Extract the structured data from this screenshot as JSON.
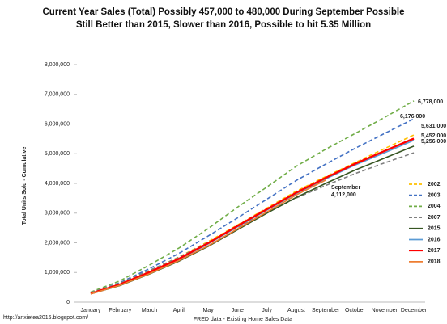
{
  "chart_data": {
    "type": "line",
    "title": "Current Year Sales (Total) Possibly 457,000 to 480,000 During September Possible",
    "subtitle": "Still Better than 2015, Slower than 2016, Possible to hit 5.35 Million",
    "y_label": "Total Units Sold - Cumulative",
    "x_label": "FRED data - Existing Home Sales Data",
    "source": "http://anxietea2016.blogspot.com/",
    "categories": [
      "January",
      "February",
      "March",
      "April",
      "May",
      "June",
      "July",
      "August",
      "September",
      "October",
      "November",
      "December"
    ],
    "ylim": [
      0,
      8000000
    ],
    "yticks": [
      0,
      {
        "value": 1000000,
        "label": "1,000,000"
      },
      {
        "value": 2000000,
        "label": "2,000,000"
      },
      {
        "value": 3000000,
        "label": "3,000,000"
      },
      {
        "value": 4000000,
        "label": "4,000,000"
      },
      {
        "value": 5000000,
        "label": "5,000,000"
      },
      {
        "value": 6000000,
        "label": "6,000,000"
      },
      {
        "value": 7000000,
        "label": "7,000,000"
      },
      {
        "value": 8000000,
        "label": "8,000,000"
      }
    ],
    "series": [
      {
        "name": "2002",
        "color": "#ffc000",
        "dashed": true,
        "values": [
          300000,
          630000,
          1060000,
          1520000,
          2040000,
          2600000,
          3170000,
          3740000,
          4230000,
          4700000,
          5170000,
          5631000
        ]
      },
      {
        "name": "2003",
        "color": "#4472c4",
        "dashed": true,
        "values": [
          310000,
          660000,
          1130000,
          1640000,
          2230000,
          2840000,
          3470000,
          4100000,
          4650000,
          5180000,
          5680000,
          6176000
        ]
      },
      {
        "name": "2004",
        "color": "#70ad47",
        "dashed": true,
        "values": [
          340000,
          720000,
          1250000,
          1820000,
          2480000,
          3200000,
          3880000,
          4580000,
          5150000,
          5680000,
          6220000,
          6778000
        ]
      },
      {
        "name": "2007",
        "color": "#7f7f7f",
        "dashed": true,
        "values": [
          320000,
          640000,
          1070000,
          1510000,
          2010000,
          2520000,
          3030000,
          3510000,
          3930000,
          4330000,
          4690000,
          5030000
        ]
      },
      {
        "name": "2015",
        "color": "#375623",
        "dashed": false,
        "values": [
          280000,
          560000,
          950000,
          1380000,
          1880000,
          2440000,
          3000000,
          3530000,
          4000000,
          4450000,
          4850000,
          5256000
        ]
      },
      {
        "name": "2016",
        "color": "#5b9bd5",
        "dashed": false,
        "values": [
          290000,
          590000,
          990000,
          1440000,
          1960000,
          2540000,
          3100000,
          3660000,
          4150000,
          4620000,
          5030000,
          5452000
        ]
      },
      {
        "name": "2017",
        "color": "#ff0000",
        "dashed": false,
        "values": [
          290000,
          600000,
          1010000,
          1460000,
          1990000,
          2570000,
          3130000,
          3690000,
          4190000,
          4660000,
          5090000,
          5510000
        ]
      },
      {
        "name": "2018",
        "color": "#ed7d31",
        "dashed": false,
        "values": [
          280000,
          570000,
          960000,
          1400000,
          1900000,
          2470000,
          3040000,
          3610000,
          4112000,
          null,
          null,
          null
        ]
      }
    ],
    "annotations": [
      {
        "text": "6,778,000",
        "color": "#333333"
      },
      {
        "text": "6,176,000",
        "color": "#333333"
      },
      {
        "text": "5,631,000",
        "color": "#333333"
      },
      {
        "text": "5,452,000",
        "color": "#c09000"
      },
      {
        "text": "5,256,000",
        "color": "#2e75b6"
      },
      {
        "text": "September",
        "color": "#7f6000"
      },
      {
        "text": "4,112,000",
        "color": "#7f6000"
      }
    ]
  }
}
